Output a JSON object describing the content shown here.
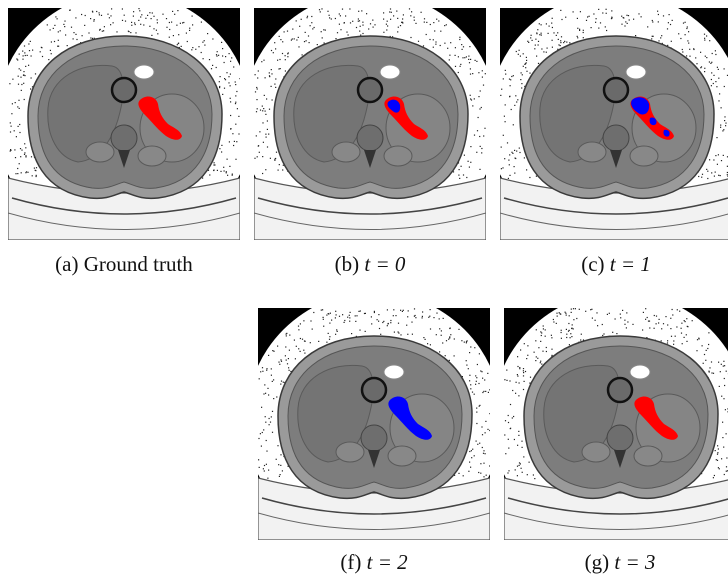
{
  "panels": [
    {
      "id": "a",
      "label": "(a)",
      "text": "Ground truth",
      "overlay": "gt"
    },
    {
      "id": "b",
      "label": "(b)",
      "text": "t = 0",
      "overlay": "t0"
    },
    {
      "id": "c",
      "label": "(c)",
      "text": "t = 1",
      "overlay": "t1"
    },
    {
      "id": "f",
      "label": "(f)",
      "text": "t = 2",
      "overlay": "t2"
    },
    {
      "id": "g",
      "label": "(g)",
      "text": "t = 3",
      "overlay": "t3"
    }
  ],
  "colors": {
    "ground_truth": "#ff0000",
    "prediction": "#0000ff",
    "background": "#000000",
    "body": "#808080",
    "table": "#f2f2f2"
  }
}
